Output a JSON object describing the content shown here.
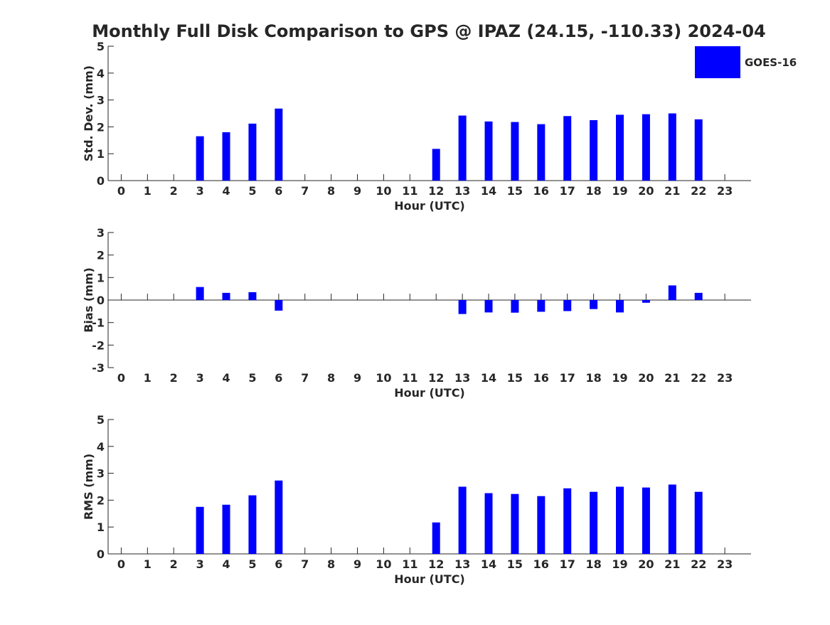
{
  "title": "Monthly Full Disk Comparison to GPS @ IPAZ (24.15, -110.33) 2024-04",
  "legend": {
    "label": "GOES-16",
    "color": "#0000ff",
    "placement": "top-right"
  },
  "chart_data": [
    {
      "type": "bar",
      "ylabel": "Std. Dev. (mm)",
      "xlabel": "Hour (UTC)",
      "ylim": [
        0,
        5
      ],
      "yticks": [
        "0",
        "1",
        "2",
        "3",
        "4",
        "5"
      ],
      "categories": [
        "0",
        "1",
        "2",
        "3",
        "4",
        "5",
        "6",
        "7",
        "8",
        "9",
        "10",
        "11",
        "12",
        "13",
        "14",
        "15",
        "16",
        "17",
        "18",
        "19",
        "20",
        "21",
        "22",
        "23"
      ],
      "series": [
        {
          "name": "GOES-16",
          "values": [
            null,
            null,
            null,
            1.65,
            1.8,
            2.12,
            2.68,
            null,
            null,
            null,
            null,
            null,
            1.18,
            2.42,
            2.2,
            2.18,
            2.1,
            2.4,
            2.25,
            2.45,
            2.47,
            2.5,
            2.28,
            null
          ]
        }
      ]
    },
    {
      "type": "bar",
      "ylabel": "Bias (mm)",
      "xlabel": "Hour (UTC)",
      "ylim": [
        -3,
        3
      ],
      "yticks": [
        "-3",
        "-2",
        "-1",
        "0",
        "1",
        "2",
        "3"
      ],
      "categories": [
        "0",
        "1",
        "2",
        "3",
        "4",
        "5",
        "6",
        "7",
        "8",
        "9",
        "10",
        "11",
        "12",
        "13",
        "14",
        "15",
        "16",
        "17",
        "18",
        "19",
        "20",
        "21",
        "22",
        "23"
      ],
      "series": [
        {
          "name": "GOES-16",
          "values": [
            null,
            null,
            null,
            0.58,
            0.32,
            0.35,
            -0.47,
            null,
            null,
            null,
            null,
            null,
            null,
            -0.62,
            -0.55,
            -0.56,
            -0.52,
            -0.49,
            -0.4,
            -0.55,
            -0.12,
            0.65,
            0.32,
            null
          ]
        }
      ]
    },
    {
      "type": "bar",
      "ylabel": "RMS (mm)",
      "xlabel": "Hour (UTC)",
      "ylim": [
        0,
        5
      ],
      "yticks": [
        "0",
        "1",
        "2",
        "3",
        "4",
        "5"
      ],
      "categories": [
        "0",
        "1",
        "2",
        "3",
        "4",
        "5",
        "6",
        "7",
        "8",
        "9",
        "10",
        "11",
        "12",
        "13",
        "14",
        "15",
        "16",
        "17",
        "18",
        "19",
        "20",
        "21",
        "22",
        "23"
      ],
      "series": [
        {
          "name": "GOES-16",
          "values": [
            null,
            null,
            null,
            1.75,
            1.83,
            2.18,
            2.73,
            null,
            null,
            null,
            null,
            null,
            1.17,
            2.5,
            2.26,
            2.23,
            2.15,
            2.44,
            2.31,
            2.5,
            2.47,
            2.58,
            2.31,
            null
          ]
        }
      ]
    }
  ]
}
